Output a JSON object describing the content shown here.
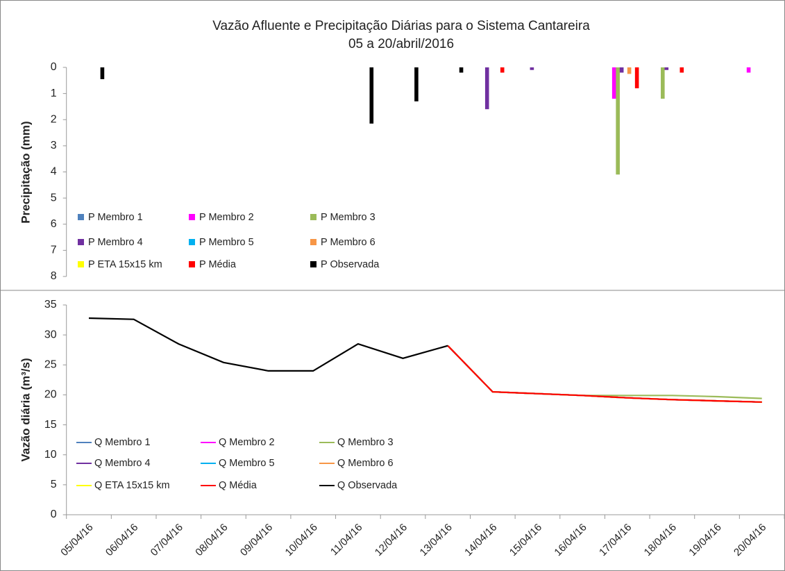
{
  "chart_data": [
    {
      "type": "bar",
      "title": "Vazão Afluente e Precipitação Diárias para o Sistema Cantareira",
      "subtitle": "05 a 20/abril/2016",
      "y_label": "Precipitação (mm)",
      "ylim": [
        0,
        8
      ],
      "y_inverted": true,
      "yticks": [
        0,
        1,
        2,
        3,
        4,
        5,
        6,
        7,
        8
      ],
      "series": [
        {
          "name": "P Membro 1",
          "color": "#4f81bd",
          "values": [
            0,
            0,
            0,
            0,
            0,
            0,
            0,
            0,
            0,
            0,
            0,
            0,
            0,
            0,
            0,
            0
          ]
        },
        {
          "name": "P Membro 2",
          "color": "#ff00ff",
          "values": [
            0,
            0,
            0,
            0,
            0,
            0,
            0,
            0,
            0,
            0,
            0,
            0,
            1.2,
            0,
            0,
            0.2
          ]
        },
        {
          "name": "P Membro 3",
          "color": "#9bbb59",
          "values": [
            0,
            0,
            0,
            0,
            0,
            0,
            0,
            0,
            0,
            0,
            0,
            0,
            4.1,
            1.2,
            0,
            0
          ]
        },
        {
          "name": "P Membro 4",
          "color": "#7030a0",
          "values": [
            0,
            0,
            0,
            0,
            0,
            0,
            0,
            0,
            0,
            1.6,
            0.1,
            0,
            0.2,
            0.1,
            0,
            0
          ]
        },
        {
          "name": "P Membro 5",
          "color": "#00b0f0",
          "values": [
            0,
            0,
            0,
            0,
            0,
            0,
            0,
            0,
            0,
            0,
            0,
            0,
            0,
            0,
            0,
            0
          ]
        },
        {
          "name": "P Membro 6",
          "color": "#f79646",
          "values": [
            0,
            0,
            0,
            0,
            0,
            0,
            0,
            0,
            0,
            0,
            0,
            0,
            0.25,
            0,
            0,
            0
          ]
        },
        {
          "name": "P ETA 15x15 km",
          "color": "#ffff00",
          "values": [
            0,
            0,
            0,
            0,
            0,
            0,
            0,
            0,
            0,
            0,
            0,
            0,
            0,
            0,
            0,
            0
          ]
        },
        {
          "name": "P Média",
          "color": "#ff0000",
          "values": [
            0,
            0,
            0,
            0,
            0,
            0,
            0,
            0,
            0,
            0.2,
            0,
            0,
            0.8,
            0.2,
            0,
            0
          ]
        },
        {
          "name": "P Observada",
          "color": "#000000",
          "values": [
            0.45,
            0,
            0,
            0,
            0,
            0,
            2.15,
            1.3,
            0.2,
            0,
            0,
            0,
            0,
            0,
            0,
            0
          ]
        }
      ]
    },
    {
      "type": "line",
      "y_label": "Vazão diária (m³/s)",
      "ylim": [
        0,
        35
      ],
      "yticks": [
        0,
        5,
        10,
        15,
        20,
        25,
        30,
        35
      ],
      "categories": [
        "05/04/16",
        "06/04/16",
        "07/04/16",
        "08/04/16",
        "09/04/16",
        "10/04/16",
        "11/04/16",
        "12/04/16",
        "13/04/16",
        "14/04/16",
        "15/04/16",
        "16/04/16",
        "17/04/16",
        "18/04/16",
        "19/04/16",
        "20/04/16"
      ],
      "series": [
        {
          "name": "Q Membro 1",
          "color": "#4f81bd",
          "values": [
            null,
            null,
            null,
            null,
            null,
            null,
            null,
            null,
            28.2,
            20.5,
            20.2,
            19.9,
            19.5,
            19.2,
            19.0,
            18.8
          ]
        },
        {
          "name": "Q Membro 2",
          "color": "#ff00ff",
          "values": [
            null,
            null,
            null,
            null,
            null,
            null,
            null,
            null,
            28.2,
            20.5,
            20.2,
            19.9,
            19.5,
            19.2,
            19.0,
            18.8
          ]
        },
        {
          "name": "Q Membro 3",
          "color": "#9bbb59",
          "values": [
            null,
            null,
            null,
            null,
            null,
            null,
            null,
            null,
            28.2,
            20.5,
            20.2,
            19.9,
            19.9,
            19.9,
            19.7,
            19.4
          ]
        },
        {
          "name": "Q Membro 4",
          "color": "#7030a0",
          "values": [
            null,
            null,
            null,
            null,
            null,
            null,
            null,
            null,
            28.2,
            20.5,
            20.2,
            19.9,
            19.5,
            19.2,
            19.0,
            18.8
          ]
        },
        {
          "name": "Q Membro 5",
          "color": "#00b0f0",
          "values": [
            null,
            null,
            null,
            null,
            null,
            null,
            null,
            null,
            28.2,
            20.5,
            20.2,
            19.9,
            19.5,
            19.2,
            19.0,
            18.8
          ]
        },
        {
          "name": "Q Membro 6",
          "color": "#f79646",
          "values": [
            null,
            null,
            null,
            null,
            null,
            null,
            null,
            null,
            28.2,
            20.5,
            20.2,
            19.9,
            19.5,
            19.2,
            19.0,
            18.8
          ]
        },
        {
          "name": "Q ETA 15x15 km",
          "color": "#ffff00",
          "values": [
            null,
            null,
            null,
            null,
            null,
            null,
            null,
            null,
            28.2,
            20.5,
            20.2,
            19.9,
            19.5,
            19.2,
            19.0,
            18.8
          ]
        },
        {
          "name": "Q Média",
          "color": "#ff0000",
          "values": [
            null,
            null,
            null,
            null,
            null,
            null,
            null,
            null,
            28.2,
            20.5,
            20.2,
            19.9,
            19.5,
            19.2,
            19.0,
            18.8
          ]
        },
        {
          "name": "Q Observada",
          "color": "#000000",
          "values": [
            32.8,
            32.6,
            28.5,
            25.4,
            24.0,
            24.0,
            28.5,
            26.1,
            28.2,
            null,
            null,
            null,
            null,
            null,
            null,
            null
          ]
        }
      ]
    }
  ]
}
